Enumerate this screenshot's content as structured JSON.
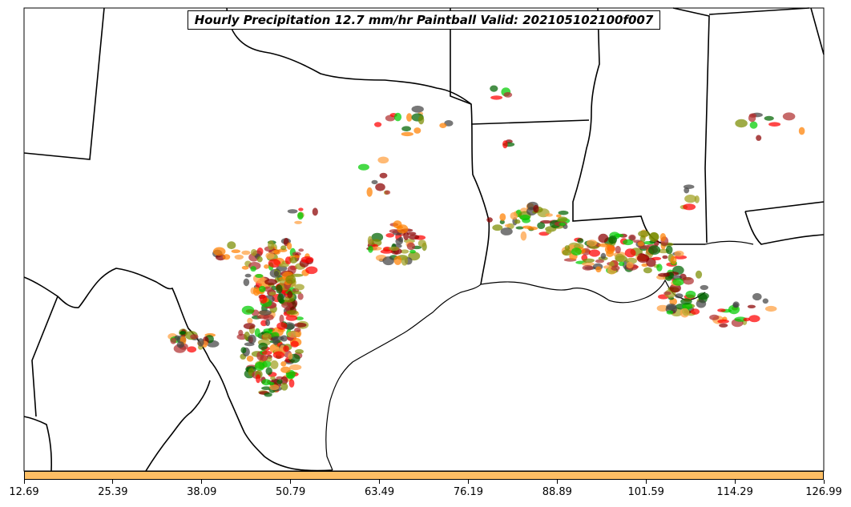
{
  "title": "Hourly Precipitation 12.7 mm/hr Paintball Valid: 202105102100f007",
  "colorbar": {
    "color": "#fdbe64",
    "ticks": [
      "12.69",
      "25.39",
      "38.09",
      "50.79",
      "63.49",
      "76.19",
      "88.89",
      "101.59",
      "114.29",
      "126.99"
    ]
  },
  "palette": [
    "#ff0000",
    "#ff7f00",
    "#00cc00",
    "#8b0000",
    "#006400",
    "#7a8c00",
    "#a0a020",
    "#444444",
    "#ffa040",
    "#b03030"
  ]
}
